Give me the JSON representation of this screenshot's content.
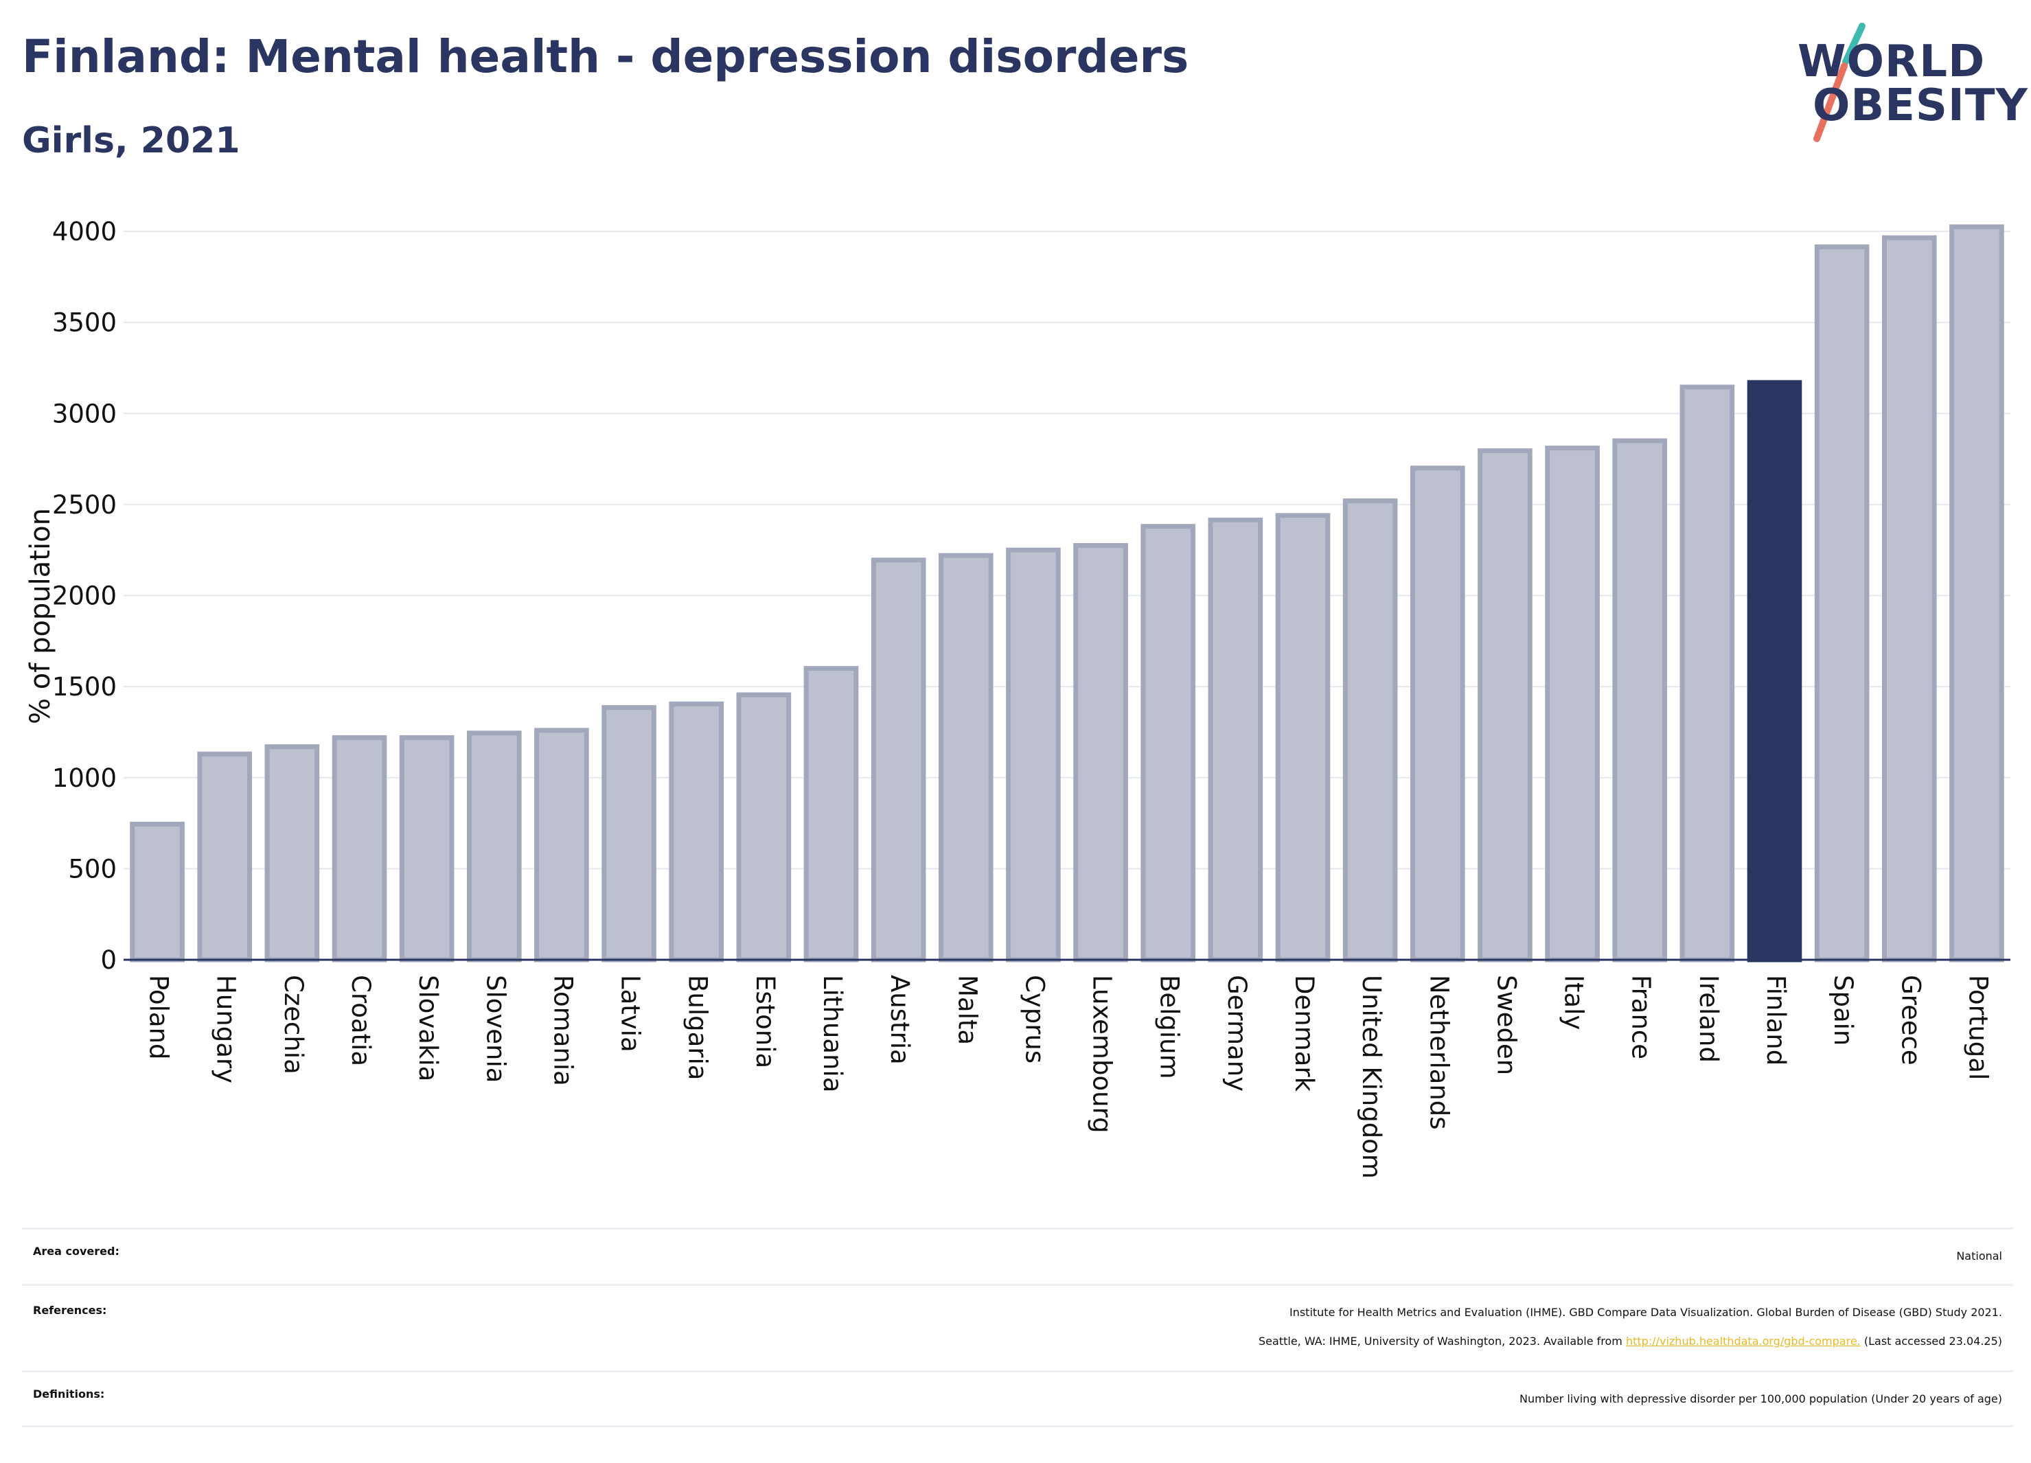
{
  "header": {
    "title": "Finland: Mental health - depression disorders",
    "subtitle": "Girls, 2021"
  },
  "logo": {
    "line1": "WORLD",
    "line2": "OBESITY",
    "colors": {
      "teal": "#3fb8af",
      "coral": "#e8705e",
      "navy": "#2a3561"
    }
  },
  "chart_data": {
    "type": "bar",
    "ylabel": "% of population",
    "xlabel": "",
    "ylim": [
      0,
      4000
    ],
    "yticks": [
      0,
      500,
      1000,
      1500,
      2000,
      2500,
      3000,
      3500,
      4000
    ],
    "grid": true,
    "highlight": "Finland",
    "colors": {
      "default_fill": "#bcc0cf",
      "default_stroke": "#a2a8bc",
      "highlight_fill": "#2a3561"
    },
    "categories": [
      "Poland",
      "Hungary",
      "Czechia",
      "Croatia",
      "Slovakia",
      "Slovenia",
      "Romania",
      "Latvia",
      "Bulgaria",
      "Estonia",
      "Lithuania",
      "Austria",
      "Malta",
      "Cyprus",
      "Luxembourg",
      "Belgium",
      "Germany",
      "Denmark",
      "United Kingdom",
      "Netherlands",
      "Sweden",
      "Italy",
      "France",
      "Ireland",
      "Finland",
      "Spain",
      "Greece",
      "Portugal"
    ],
    "values": [
      745,
      1130,
      1170,
      1220,
      1220,
      1245,
      1260,
      1385,
      1405,
      1455,
      1600,
      2195,
      2220,
      2250,
      2275,
      2380,
      2415,
      2440,
      2520,
      2700,
      2795,
      2810,
      2850,
      3145,
      3170,
      3915,
      3965,
      4025
    ]
  },
  "info": {
    "area_label": "Area covered:",
    "area_value": "National",
    "references_label": "References:",
    "references_line1": "Institute for Health Metrics and Evaluation (IHME). GBD Compare Data Visualization. Global Burden of Disease (GBD) Study 2021.",
    "references_line2_pre": "Seattle, WA: IHME, University of Washington, 2023. Available from ",
    "references_link": "http://vizhub.healthdata.org/gbd-compare.",
    "references_line2_post": " (Last accessed 23.04.25)",
    "definitions_label": "Definitions:",
    "definitions_value": "Number living with depressive disorder per 100,000 population (Under 20 years of age)"
  }
}
